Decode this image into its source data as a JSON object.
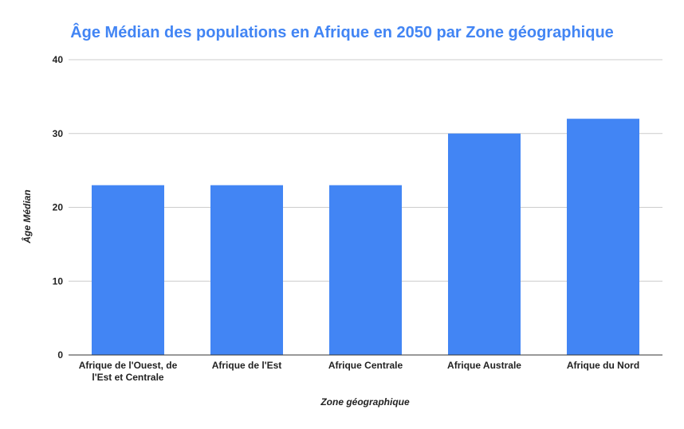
{
  "colors": {
    "title": "#4285F4",
    "bar": "#4285F4",
    "grid": "#cccccc",
    "axis": "#333333",
    "text": "#222222"
  },
  "chart_data": {
    "type": "bar",
    "title": "Âge Médian des populations en Afrique en 2050 par Zone géographique",
    "xlabel": "Zone géographique",
    "ylabel": "Âge Médian",
    "categories": [
      "Afrique de l'Ouest, de l'Est et Centrale",
      "Afrique de l'Est",
      "Afrique Centrale",
      "Afrique Australe",
      "Afrique du Nord"
    ],
    "category_lines": [
      [
        "Afrique de l'Ouest, de",
        "l'Est et Centrale"
      ],
      [
        "Afrique de l'Est"
      ],
      [
        "Afrique Centrale"
      ],
      [
        "Afrique Australe"
      ],
      [
        "Afrique du Nord"
      ]
    ],
    "values": [
      23,
      23,
      23,
      30,
      32
    ],
    "ylim": [
      0,
      40
    ],
    "yticks": [
      0,
      10,
      20,
      30,
      40
    ],
    "grid": true,
    "legend": "none"
  }
}
